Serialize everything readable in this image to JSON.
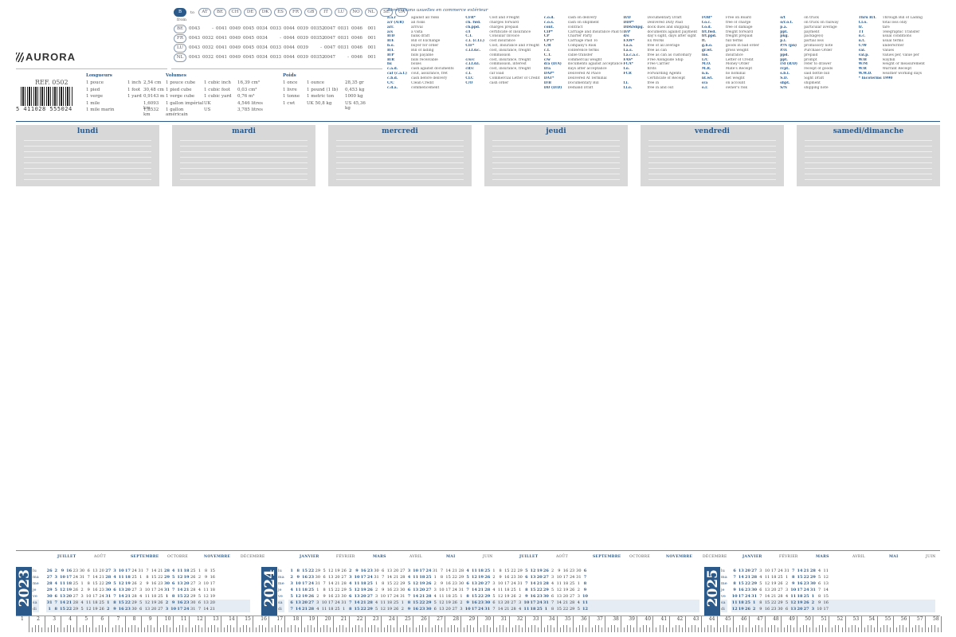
{
  "brand": {
    "name": "AURORA",
    "ref": "REF. 0502",
    "barcode": "5 411028 555024"
  },
  "country_table": {
    "label_to": "to",
    "label_from": "from",
    "countries": [
      "B",
      "AT",
      "BE",
      "CH",
      "DE",
      "DK",
      "ES",
      "FR",
      "GB",
      "IT",
      "LU",
      "NO",
      "NL",
      "SE",
      "UA"
    ],
    "rows": [
      {
        "code": "BE",
        "values": [
          "0043",
          "-",
          "0041",
          "0049",
          "0045",
          "0034",
          "0033",
          "0044",
          "0039",
          "00352",
          "0047",
          "0031",
          "0046",
          "001"
        ]
      },
      {
        "code": "FR",
        "values": [
          "0043",
          "0032",
          "0041",
          "0049",
          "0045",
          "0034",
          "-",
          "0044",
          "0039",
          "00352",
          "0047",
          "0031",
          "0046",
          "001"
        ]
      },
      {
        "code": "LU",
        "values": [
          "0043",
          "0032",
          "0041",
          "0049",
          "0045",
          "0034",
          "0033",
          "0044",
          "0039",
          "-",
          "0047",
          "0031",
          "0046",
          "001"
        ]
      },
      {
        "code": "NL",
        "values": [
          "0043",
          "0032",
          "0041",
          "0049",
          "0045",
          "0034",
          "0033",
          "0044",
          "0039",
          "00352",
          "0047",
          "-",
          "0046",
          "001"
        ]
      }
    ]
  },
  "conversions": [
    {
      "title": "Longueurs",
      "rows": [
        [
          "1 pouce",
          "1 inch",
          "2,54 cm"
        ],
        [
          "1 pied",
          "1 foot",
          "30,48 cm"
        ],
        [
          "1 verge",
          "1 yard",
          "0,9143 m"
        ],
        [
          "1 mile",
          "",
          "1,6093 km"
        ],
        [
          "1 mile marin",
          "",
          "1,8532 km"
        ]
      ]
    },
    {
      "title": "Volumes",
      "rows": [
        [
          "1 pouce cube",
          "1 cubic inch",
          "16,39 cm³"
        ],
        [
          "1 pied cube",
          "1 cubic foot",
          "0,03 cm³"
        ],
        [
          "1 verge cube",
          "1 cubic yard",
          "0,76 m³"
        ],
        [
          "1 gallon impérial",
          "UK",
          "4,546 litres"
        ],
        [
          "1 gallon américain",
          "US",
          "3,785 litres"
        ]
      ]
    },
    {
      "title": "Poids",
      "rows": [
        [
          "1 once",
          "1 ounce",
          "28,35 gr"
        ],
        [
          "1 livre",
          "1 pound (1 lb)",
          "0,453 kg"
        ],
        [
          "1 tonne",
          "1 metric ton",
          "1000 kg"
        ],
        [
          "1 cwt",
          "UK 50,8 kg",
          "US 45,36 kg"
        ]
      ]
    }
  ],
  "abbreviations": {
    "title": "Abréviations usuelles en commerce extérieur",
    "columns": [
      [
        [
          "a.a.r",
          "against all risks"
        ],
        [
          "a/r (A/R)",
          "all risks"
        ],
        [
          "arr.",
          "arrival"
        ],
        [
          "a/s",
          "a vista"
        ],
        [
          "B/D",
          "bank draft"
        ],
        [
          "B/E",
          "Bill of Exchange"
        ],
        [
          "b.o.",
          "buyer for order"
        ],
        [
          "B/L",
          "Bill of lading"
        ],
        [
          "B/P",
          "bills payable"
        ],
        [
          "B/R",
          "bills receivable"
        ],
        [
          "bx",
          "boxes"
        ],
        [
          "c.a.d.",
          "cash against documents"
        ],
        [
          "caf (c.a.f.)",
          "coût, assurance, fret"
        ],
        [
          "c.b.d.",
          "cash before delivery"
        ],
        [
          "C/C",
          "Clean Credit"
        ],
        [
          "c.d.a.",
          "commencement"
        ]
      ],
      [
        [
          "CFR*",
          "Cost and Freight"
        ],
        [
          "ch. fwd.",
          "charges forward"
        ],
        [
          "ch.ppd.",
          "charges prepaid"
        ],
        [
          "c/i",
          "certificate of insurance"
        ],
        [
          "C.I.",
          "Consular Invoice"
        ],
        [
          "c.i. (c.f.i.)",
          "cost insurance"
        ],
        [
          "CIF*",
          "Cost, Insurance and Freight"
        ],
        [
          "c.i.f.&c.",
          "cost, insurance, freight"
        ],
        [
          "",
          "commission"
        ],
        [
          "c/o/c",
          "cost, insurance, freight"
        ],
        [
          "c.i.f.&i.",
          "commission, interest"
        ],
        [
          "cif/c",
          "cost, insurance, freight"
        ],
        [
          "c.l.",
          "car load"
        ],
        [
          "CLC",
          "Commercial Letter of Credit"
        ],
        [
          "C/O",
          "cash order"
        ]
      ],
      [
        [
          "c.o.d.",
          "cash on delivery"
        ],
        [
          "c.o.s.",
          "cash on shipment"
        ],
        [
          "cont.",
          "contract"
        ],
        [
          "CIP*",
          "Carriage and Insurance Paid to"
        ],
        [
          "CP",
          "Charter Party"
        ],
        [
          "CPT*",
          "Carriage Paid To"
        ],
        [
          "C/R",
          "Company's Risk"
        ],
        [
          "c.t.",
          "conference terms"
        ],
        [
          "C.T.",
          "cable transfer"
        ],
        [
          "c/w",
          "commercial weight"
        ],
        [
          "d/a (D/A)",
          "documents against acceptance"
        ],
        [
          "D/a",
          "days after acceptance"
        ],
        [
          "DAP*",
          "Delivered At Place"
        ],
        [
          "DAT*",
          "Delivered At Terminal"
        ],
        [
          "D/B",
          "Documentary Bill"
        ],
        [
          "DD (D/D)",
          "Demand Draft"
        ]
      ],
      [
        [
          "D/D",
          "Documentary Draft"
        ],
        [
          "DDP*",
          "Delivered Duty Paid"
        ],
        [
          "DD&Shpg.",
          "dock dues and shipping"
        ],
        [
          "D/P",
          "documents against payment"
        ],
        [
          "d/s",
          "day's sight, days after sight"
        ],
        [
          "EXW*",
          "Ex Works"
        ],
        [
          "f.a.a.",
          "free of all average"
        ],
        [
          "f.a.s.",
          "free as can"
        ],
        [
          "f.a.c.a.c.",
          "free as can as customary"
        ],
        [
          "FAS*",
          "Free Alongside Ship"
        ],
        [
          "FCA*",
          "Free Carrier"
        ],
        [
          "f.o.",
          "firsts"
        ],
        [
          "FCR",
          "Forwarding Agents"
        ],
        [
          "",
          "Certificate of Receipt"
        ],
        [
          "f.i.",
          "free in"
        ],
        [
          "f.i.o.",
          "free in and out"
        ]
      ],
      [
        [
          "FOB*",
          "Free on Board"
        ],
        [
          "f.o.c.",
          "free of charge"
        ],
        [
          "f.o.d.",
          "free of damage"
        ],
        [
          "frt.fwd.",
          "freight forward"
        ],
        [
          "frt.ppd.",
          "freight prepaid"
        ],
        [
          "ft.",
          "full terms"
        ],
        [
          "g.b.o.",
          "goods in bad order"
        ],
        [
          "gr.wt.",
          "gross weight"
        ],
        [
          "ins.",
          "insurance"
        ],
        [
          "L/C",
          "Letter of Credit"
        ],
        [
          "M.O.",
          "Money Order"
        ],
        [
          "M.R.",
          "Mate's Receipt"
        ],
        [
          "n.n.",
          "no nominal"
        ],
        [
          "nt.wt.",
          "net weight"
        ],
        [
          "o/a",
          "on account"
        ],
        [
          "o.r.",
          "owner's risk"
        ]
      ],
      [
        [
          "o/t",
          "on truck"
        ],
        [
          "o/r.o.t.",
          "on truck on railway"
        ],
        [
          "p.a.",
          "particular average"
        ],
        [
          "ppt.",
          "payment"
        ],
        [
          "pkg.",
          "package(s)"
        ],
        [
          "p.l.",
          "partial loss"
        ],
        [
          "P/N (pn)",
          "promissory note"
        ],
        [
          "P.O.",
          "Purchase Order"
        ],
        [
          "ppd.",
          "prepaid"
        ],
        [
          "ppt.",
          "prompt"
        ],
        [
          "r/d (R/D)",
          "refer to drawer"
        ],
        [
          "rcpt.",
          "receipt of goods"
        ],
        [
          "s.b.l.",
          "said bottle bill"
        ],
        [
          "S.D.",
          "Sight Draft"
        ],
        [
          "shpt.",
          "shipment"
        ],
        [
          "S/N",
          "shipping note"
        ]
      ],
      [
        [
          "Thru B/L",
          "Through Bill of Lading"
        ],
        [
          "t.l.o.",
          "total loss only"
        ],
        [
          "tr.",
          "tare"
        ],
        [
          "TT",
          "Telegraphic Transfer"
        ],
        [
          "u.c.",
          "usual conditions"
        ],
        [
          "u.t.",
          "usual terms"
        ],
        [
          "U/W",
          "underwriter"
        ],
        [
          "val.",
          "Values"
        ],
        [
          "val.p.",
          "values per, value per"
        ],
        [
          "W/B",
          "waybill"
        ],
        [
          "W/M",
          "weight or measurement"
        ],
        [
          "W/R",
          "Warrant Receipt"
        ],
        [
          "W.W.D.",
          "weather working days"
        ],
        [
          "* Incoterms 1990",
          ""
        ]
      ]
    ]
  },
  "days": [
    "lundi",
    "mardi",
    "mercredi",
    "jeudi",
    "vendredi",
    "samedi/dimanche"
  ],
  "calendar": {
    "weekdays": [
      "lu",
      "ma",
      "me",
      "je",
      "ve",
      "sa",
      "di"
    ],
    "years": [
      {
        "year": "2023",
        "months": [
          "JUILLET",
          "AOÛT",
          "SEPTEMBRE",
          "OCTOBRE",
          "NOVEMBRE",
          "DÉCEMBRE"
        ]
      },
      {
        "year": "2024",
        "months": [
          "JANVIER",
          "FÉVRIER",
          "MARS",
          "AVRIL",
          "MAI",
          "JUIN",
          "JUILLET",
          "AOÛT",
          "SEPTEMBRE",
          "OCTOBRE",
          "NOVEMBRE",
          "DÉCEMBRE"
        ]
      },
      {
        "year": "2025",
        "months": [
          "JANVIER",
          "FÉVRIER",
          "MARS",
          "AVRIL",
          "MAI",
          "JUIN"
        ]
      }
    ]
  },
  "ruler": {
    "start": 1,
    "end": 58,
    "unit": "cm"
  }
}
